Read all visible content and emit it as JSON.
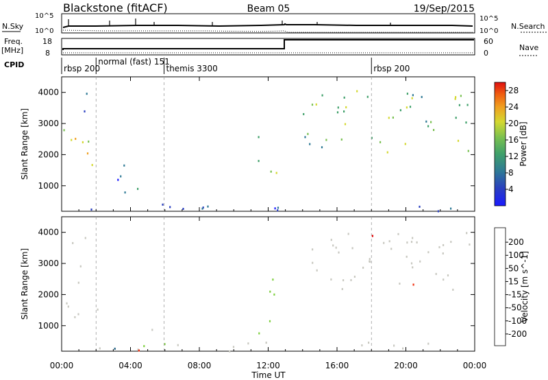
{
  "header": {
    "station": "Blackstone (fitACF)",
    "beam": "Beam 05",
    "date": "19/Sep/2015"
  },
  "noise_panel": {
    "left_label": "N.Sky",
    "left_ticks": [
      "10^5",
      "10^0"
    ],
    "right_label": "N.Search",
    "right_ticks": [
      "10^5",
      "10^0"
    ]
  },
  "freq_panel": {
    "left_label_line1": "Freq.",
    "left_label_line2": "[MHz]",
    "left_ticks": [
      "18",
      "8"
    ],
    "right_label": "Nave",
    "right_ticks": [
      "60",
      "0"
    ]
  },
  "cpid": {
    "label": "CPID",
    "segments": [
      {
        "label": "rbsp 200",
        "start_hour": 0.0
      },
      {
        "label": "normal (fast)  151",
        "start_hour": 2.0
      },
      {
        "label": "themis 3300",
        "start_hour": 5.95
      },
      {
        "label": "rbsp 200",
        "start_hour": 18.0
      }
    ]
  },
  "chart_data": [
    {
      "type": "heatmap",
      "title": "",
      "ylabel": "Slant Range [km]",
      "xlabel": "",
      "x_range_hours": [
        0,
        24
      ],
      "ylim": [
        180,
        4500
      ],
      "yticks": [
        1000,
        2000,
        3000,
        4000
      ],
      "colorbar": {
        "label": "Power [dB]",
        "ticks": [
          "4",
          "8",
          "12",
          "16",
          "20",
          "24",
          "28"
        ],
        "range": [
          0,
          30
        ],
        "colors": [
          "#1a1aff",
          "#2a3fc0",
          "#2f7a96",
          "#3fa06a",
          "#78c050",
          "#d4d830",
          "#f0a020",
          "#f06010",
          "#e01010"
        ]
      },
      "regions": [
        {
          "name": "dawn-arc",
          "t0": 0.1,
          "t1": 2.1,
          "r0": 1300,
          "r1": 2950,
          "power": 18
        },
        {
          "name": "high-streak",
          "t0": 0.4,
          "t1": 1.5,
          "r0": 3300,
          "r1": 4300,
          "power": 6
        },
        {
          "name": "band-850km",
          "t0": 2.3,
          "t1": 5.9,
          "r0": 750,
          "r1": 950,
          "power": 6
        },
        {
          "name": "patch-1600km",
          "t0": 2.7,
          "t1": 4.3,
          "r0": 1100,
          "r1": 1900,
          "power": 5
        },
        {
          "name": "near-range-clutter",
          "t0": 0.3,
          "t1": 24,
          "r0": 200,
          "r1": 450,
          "power": 5
        },
        {
          "name": "noon-streak",
          "t0": 11.3,
          "t1": 12.6,
          "r0": 1300,
          "r1": 2600,
          "power": 15
        },
        {
          "name": "afternoon-arc",
          "t0": 14.0,
          "t1": 24.0,
          "r0": 2100,
          "r1": 4100,
          "power": 14
        },
        {
          "name": "late-patch",
          "t0": 23.5,
          "t1": 23.9,
          "r0": 700,
          "r1": 1100,
          "power": 5
        }
      ]
    },
    {
      "type": "heatmap",
      "title": "",
      "ylabel": "Slant Range [km]",
      "xlabel": "Time UT",
      "x_range_hours": [
        0,
        24
      ],
      "xticks": [
        "00:00",
        "04:00",
        "08:00",
        "12:00",
        "16:00",
        "20:00",
        "00:00"
      ],
      "ylim": [
        180,
        4500
      ],
      "yticks": [
        1000,
        2000,
        3000,
        4000
      ],
      "colorbar": {
        "label": "Velocity [m s^-1]",
        "ticks": [
          "200",
          "100",
          "50",
          "15",
          "-15",
          "-50",
          "-100",
          "-200"
        ],
        "range": [
          -250,
          250
        ],
        "colors": [
          "#1a2aff",
          "#1f5f80",
          "#2e8f40",
          "#7fd040",
          "#c8c8c0",
          "#c8c8c0",
          "#f0c020",
          "#f08010",
          "#f03010",
          "#e00000"
        ]
      },
      "regions": [
        {
          "name": "dawn-arc",
          "t0": 0.1,
          "t1": 2.1,
          "r0": 1300,
          "r1": 2950,
          "velocity": 0
        },
        {
          "name": "high-streak",
          "t0": 0.5,
          "t1": 1.6,
          "r0": 3500,
          "r1": 4300,
          "velocity": -60
        },
        {
          "name": "band-850km",
          "t0": 2.5,
          "t1": 5.9,
          "r0": 800,
          "r1": 950,
          "velocity": 0
        },
        {
          "name": "near-range",
          "t0": 0.3,
          "t1": 24,
          "r0": 200,
          "r1": 500,
          "velocity": -40
        },
        {
          "name": "noon-streak",
          "t0": 11.3,
          "t1": 12.6,
          "r0": 700,
          "r1": 2600,
          "velocity": -60
        },
        {
          "name": "afternoon-arc",
          "t0": 14.0,
          "t1": 24.0,
          "r0": 2100,
          "r1": 4100,
          "velocity": 0
        }
      ]
    }
  ]
}
